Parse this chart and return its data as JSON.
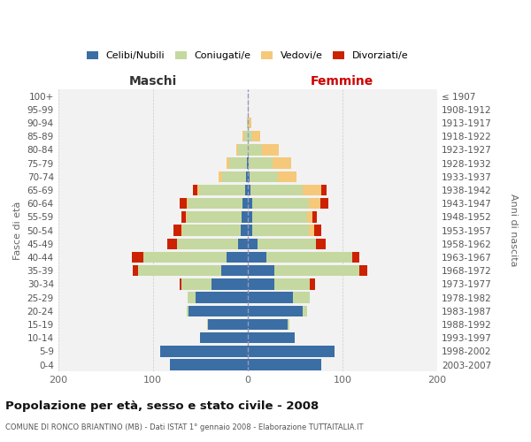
{
  "age_groups": [
    "100+",
    "95-99",
    "90-94",
    "85-89",
    "80-84",
    "75-79",
    "70-74",
    "65-69",
    "60-64",
    "55-59",
    "50-54",
    "45-49",
    "40-44",
    "35-39",
    "30-34",
    "25-29",
    "20-24",
    "15-19",
    "10-14",
    "5-9",
    "0-4"
  ],
  "birth_years": [
    "≤ 1907",
    "1908-1912",
    "1913-1917",
    "1918-1922",
    "1923-1927",
    "1928-1932",
    "1933-1937",
    "1938-1942",
    "1943-1947",
    "1948-1952",
    "1953-1957",
    "1958-1962",
    "1963-1967",
    "1968-1972",
    "1973-1977",
    "1978-1982",
    "1983-1987",
    "1988-1992",
    "1993-1997",
    "1998-2002",
    "2003-2007"
  ],
  "maschi_celibi": [
    0,
    0,
    0,
    0,
    0,
    1,
    2,
    3,
    5,
    6,
    7,
    10,
    22,
    28,
    38,
    55,
    62,
    42,
    50,
    92,
    82
  ],
  "maschi_coniugati": [
    0,
    0,
    1,
    4,
    10,
    18,
    25,
    48,
    58,
    58,
    62,
    65,
    88,
    88,
    32,
    8,
    2,
    1,
    0,
    0,
    0
  ],
  "maschi_vedovi": [
    0,
    0,
    0,
    1,
    2,
    3,
    4,
    2,
    1,
    1,
    1,
    0,
    0,
    0,
    0,
    0,
    0,
    0,
    0,
    0,
    0
  ],
  "maschi_divorziati": [
    0,
    0,
    0,
    0,
    0,
    0,
    0,
    5,
    8,
    5,
    8,
    10,
    12,
    5,
    2,
    0,
    0,
    0,
    0,
    0,
    0
  ],
  "femmine_nubili": [
    0,
    0,
    0,
    0,
    0,
    1,
    2,
    3,
    5,
    5,
    5,
    10,
    20,
    28,
    28,
    48,
    58,
    42,
    50,
    92,
    78
  ],
  "femmine_coniugate": [
    0,
    0,
    1,
    5,
    15,
    25,
    30,
    55,
    60,
    58,
    60,
    62,
    90,
    90,
    38,
    18,
    5,
    2,
    0,
    0,
    0
  ],
  "femmine_vedove": [
    0,
    1,
    3,
    8,
    18,
    20,
    20,
    20,
    12,
    5,
    5,
    0,
    0,
    0,
    0,
    0,
    0,
    0,
    0,
    0,
    0
  ],
  "femmine_divorziate": [
    0,
    0,
    0,
    0,
    0,
    0,
    0,
    5,
    8,
    5,
    8,
    10,
    8,
    8,
    5,
    0,
    0,
    0,
    0,
    0,
    0
  ],
  "color_celibe": "#3a6ea5",
  "color_coniug": "#c5d8a0",
  "color_vedovi": "#f5c87a",
  "color_divorz": "#cc2200",
  "title": "Popolazione per età, sesso e stato civile - 2008",
  "subtitle": "COMUNE DI RONCO BRIANTINO (MB) - Dati ISTAT 1° gennaio 2008 - Elaborazione TUTTAITALIA.IT",
  "legend_labels": [
    "Celibi/Nubili",
    "Coniugati/e",
    "Vedovi/e",
    "Divorziati/e"
  ],
  "xlim": 200,
  "bar_height": 0.82,
  "bg_color": "#ffffff",
  "plot_bg": "#f2f2f2",
  "grid_color": "#cccccc",
  "label_maschi": "Maschi",
  "label_femmine": "Femmine",
  "ylabel_left": "Fasce di età",
  "ylabel_right": "Anni di nascita"
}
